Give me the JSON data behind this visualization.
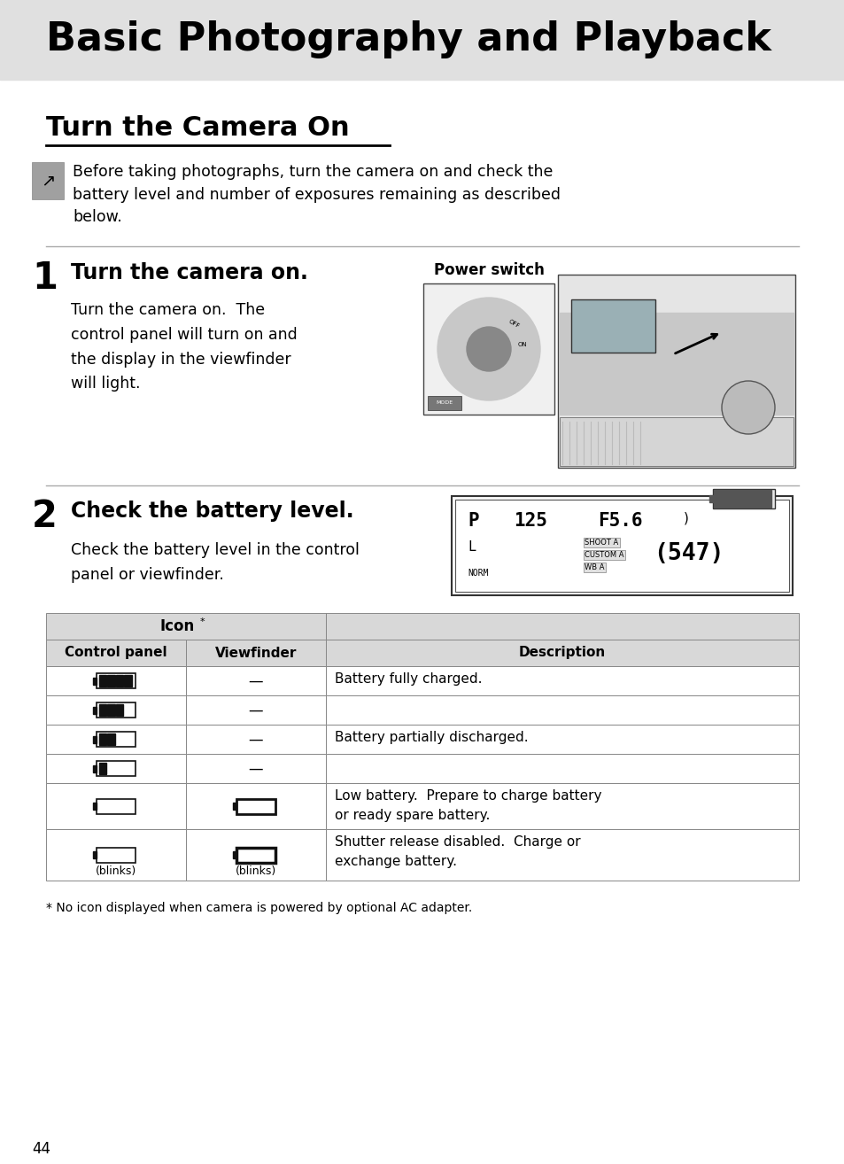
{
  "page_bg": "#ffffff",
  "header_bg": "#e0e0e0",
  "header_text": "Basic Photography and Playback",
  "header_text_color": "#000000",
  "section_title": "Turn the Camera On",
  "section_title_color": "#000000",
  "intro_text": "Before taking photographs, turn the camera on and check the\nbattery level and number of exposures remaining as described\nbelow.",
  "step1_number": "1",
  "step1_title": "Turn the camera on.",
  "step1_image_label": "Power switch",
  "step1_body": "Turn the camera on.  The\ncontrol panel will turn on and\nthe display in the viewfinder\nwill light.",
  "step2_number": "2",
  "step2_title": "Check the battery level.",
  "step2_body": "Check the battery level in the control\npanel or viewfinder.",
  "table_header1": "Icon",
  "table_header1_super": "*",
  "table_col1": "Control panel",
  "table_col2": "Viewfinder",
  "table_col3": "Description",
  "table_rows": [
    {
      "cp": "battery_full",
      "vf": "—",
      "desc": "Battery fully charged."
    },
    {
      "cp": "battery_3q",
      "vf": "—",
      "desc": ""
    },
    {
      "cp": "battery_half",
      "vf": "—",
      "desc": "Battery partially discharged."
    },
    {
      "cp": "battery_1q",
      "vf": "—",
      "desc": ""
    },
    {
      "cp": "battery_low",
      "vf": "battery_low_vf",
      "desc": "Low battery.  Prepare to charge battery\nor ready spare battery."
    },
    {
      "cp": "battery_empty",
      "vf": "battery_empty_vf",
      "desc": "Shutter release disabled.  Charge or\nexchange battery.",
      "cp_sub": "(blinks)",
      "vf_sub": "(blinks)"
    }
  ],
  "footnote": "* No icon displayed when camera is powered by optional AC adapter.",
  "page_number": "44",
  "table_header_bg": "#d8d8d8",
  "table_line_color": "#888888"
}
